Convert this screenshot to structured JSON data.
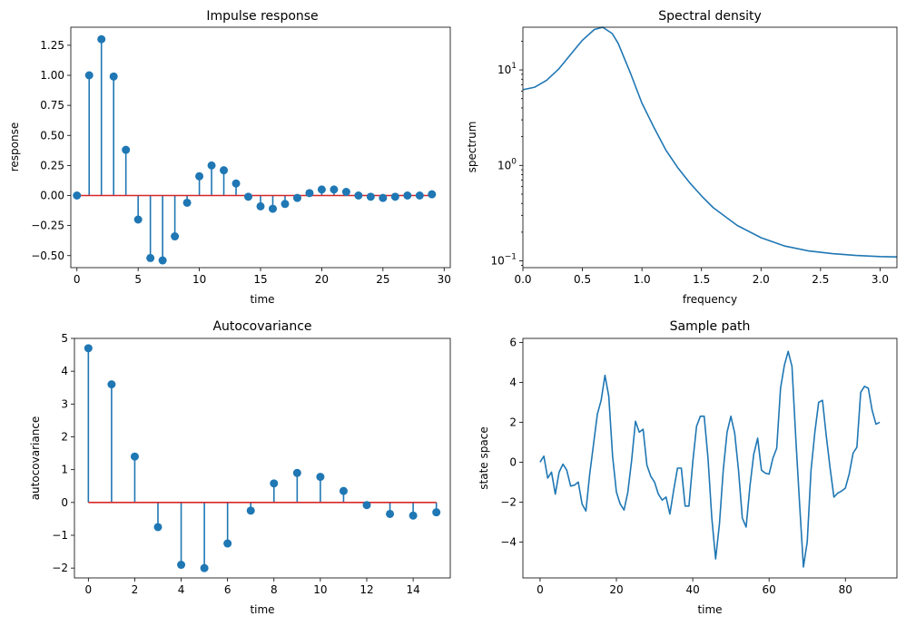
{
  "colors": {
    "series": "#1f77b4",
    "baseline": "#d62728",
    "axes": "#000000"
  },
  "chart_data": [
    {
      "type": "stem",
      "title": "Impulse response",
      "xlabel": "time",
      "ylabel": "response",
      "xlim": [
        -0.5,
        30.5
      ],
      "ylim": [
        -0.6,
        1.4
      ],
      "xticks": [
        0,
        5,
        10,
        15,
        20,
        25,
        30
      ],
      "yticks": [
        -0.5,
        -0.25,
        0.0,
        0.25,
        0.5,
        0.75,
        1.0,
        1.25
      ],
      "ytick_labels": [
        "−0.50",
        "−0.25",
        "0.00",
        "0.25",
        "0.50",
        "0.75",
        "1.00",
        "1.25"
      ],
      "baseline": 0,
      "x": [
        0,
        1,
        2,
        3,
        4,
        5,
        6,
        7,
        8,
        9,
        10,
        11,
        12,
        13,
        14,
        15,
        16,
        17,
        18,
        19,
        20,
        21,
        22,
        23,
        24,
        25,
        26,
        27,
        28,
        29
      ],
      "values": [
        0.0,
        1.0,
        1.3,
        0.99,
        0.38,
        -0.2,
        -0.52,
        -0.54,
        -0.34,
        -0.06,
        0.16,
        0.25,
        0.21,
        0.1,
        -0.01,
        -0.09,
        -0.11,
        -0.07,
        -0.02,
        0.02,
        0.05,
        0.05,
        0.03,
        0.0,
        -0.01,
        -0.02,
        -0.01,
        0.0,
        0.0,
        0.01
      ]
    },
    {
      "type": "line",
      "title": "Spectral density",
      "xlabel": "frequency",
      "ylabel": "spectrum",
      "yscale": "log",
      "xlim": [
        0,
        3.1416
      ],
      "ylim": [
        0.085,
        28
      ],
      "xticks": [
        0.0,
        0.5,
        1.0,
        1.5,
        2.0,
        2.5,
        3.0
      ],
      "yticks": [
        0.1,
        1,
        10
      ],
      "x": [
        0.0,
        0.1,
        0.2,
        0.3,
        0.4,
        0.5,
        0.6,
        0.67,
        0.75,
        0.8,
        0.9,
        1.0,
        1.1,
        1.2,
        1.3,
        1.4,
        1.5,
        1.6,
        1.8,
        2.0,
        2.2,
        2.4,
        2.6,
        2.8,
        3.0,
        3.1416
      ],
      "values": [
        6.2,
        6.6,
        7.8,
        10.2,
        14.5,
        20.5,
        26.5,
        28.0,
        24.0,
        19.0,
        9.5,
        4.5,
        2.5,
        1.45,
        0.95,
        0.66,
        0.48,
        0.36,
        0.235,
        0.175,
        0.143,
        0.127,
        0.119,
        0.114,
        0.111,
        0.11
      ]
    },
    {
      "type": "stem",
      "title": "Autocovariance",
      "xlabel": "time",
      "ylabel": "autocovariance",
      "xlim": [
        -0.6,
        15.6
      ],
      "ylim": [
        -2.3,
        5.0
      ],
      "xticks": [
        0,
        2,
        4,
        6,
        8,
        10,
        12,
        14
      ],
      "yticks": [
        -2,
        -1,
        0,
        1,
        2,
        3,
        4,
        5
      ],
      "ytick_labels": [
        "−2",
        "−1",
        "0",
        "1",
        "2",
        "3",
        "4",
        "5"
      ],
      "baseline": 0,
      "x": [
        0,
        1,
        2,
        3,
        4,
        5,
        6,
        7,
        8,
        9,
        10,
        11,
        12,
        13,
        14,
        15
      ],
      "values": [
        4.7,
        3.6,
        1.4,
        -0.75,
        -1.9,
        -2.0,
        -1.25,
        -0.25,
        0.58,
        0.9,
        0.78,
        0.35,
        -0.08,
        -0.35,
        -0.4,
        -0.3
      ]
    },
    {
      "type": "line",
      "title": "Sample path",
      "xlabel": "time",
      "ylabel": "state space",
      "xlim": [
        -4.5,
        93.5
      ],
      "ylim": [
        -5.8,
        6.2
      ],
      "xticks": [
        0,
        20,
        40,
        60,
        80
      ],
      "yticks": [
        -4,
        -2,
        0,
        2,
        4,
        6
      ],
      "ytick_labels": [
        "−4",
        "−2",
        "0",
        "2",
        "4",
        "6"
      ],
      "x": [
        0,
        1,
        2,
        3,
        4,
        5,
        6,
        7,
        8,
        9,
        10,
        11,
        12,
        13,
        14,
        15,
        16,
        17,
        18,
        19,
        20,
        21,
        22,
        23,
        24,
        25,
        26,
        27,
        28,
        29,
        30,
        31,
        32,
        33,
        34,
        35,
        36,
        37,
        38,
        39,
        40,
        41,
        42,
        43,
        44,
        45,
        46,
        47,
        48,
        49,
        50,
        51,
        52,
        53,
        54,
        55,
        56,
        57,
        58,
        59,
        60,
        61,
        62,
        63,
        64,
        65,
        66,
        67,
        68,
        69,
        70,
        71,
        72,
        73,
        74,
        75,
        76,
        77,
        78,
        79,
        80,
        81,
        82,
        83,
        84,
        85,
        86,
        87,
        88,
        89
      ],
      "values": [
        0.0,
        0.3,
        -0.8,
        -0.5,
        -1.6,
        -0.5,
        -0.1,
        -0.4,
        -1.2,
        -1.15,
        -1.0,
        -2.1,
        -2.45,
        -0.6,
        0.9,
        2.4,
        3.1,
        4.35,
        3.3,
        0.3,
        -1.5,
        -2.1,
        -2.4,
        -1.5,
        0.1,
        2.05,
        1.5,
        1.65,
        -0.15,
        -0.7,
        -1.0,
        -1.6,
        -1.9,
        -1.75,
        -2.6,
        -1.4,
        -0.3,
        -0.3,
        -2.2,
        -2.2,
        0.0,
        1.8,
        2.3,
        2.3,
        0.2,
        -2.8,
        -4.85,
        -3.1,
        -0.4,
        1.5,
        2.3,
        1.45,
        -0.4,
        -2.8,
        -3.25,
        -1.2,
        0.4,
        1.2,
        -0.4,
        -0.55,
        -0.6,
        0.2,
        0.7,
        3.7,
        4.85,
        5.55,
        4.8,
        1.2,
        -2.1,
        -5.25,
        -4.0,
        -0.4,
        1.5,
        3.0,
        3.1,
        1.3,
        -0.3,
        -1.75,
        -1.55,
        -1.45,
        -1.3,
        -0.6,
        0.45,
        0.75,
        3.5,
        3.8,
        3.7,
        2.6,
        1.9,
        2.0
      ]
    }
  ]
}
